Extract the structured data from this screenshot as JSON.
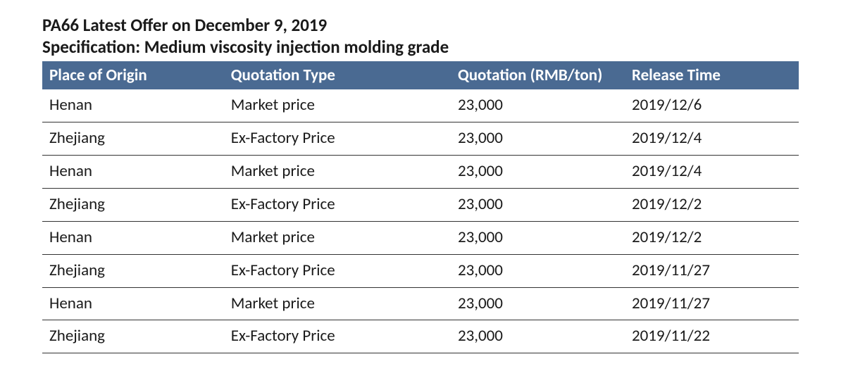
{
  "title_line1": "PA66 Latest Offer on December 9, 2019",
  "title_line2": "Specification: Medium viscosity injection molding grade",
  "table": {
    "header_bg": "#4a6a92",
    "header_color": "#ffffff",
    "row_border_color": "#333333",
    "font_family": "Calibri, Arial, sans-serif",
    "title_fontsize": 25,
    "header_fontsize": 23,
    "cell_fontsize": 23,
    "columns": [
      {
        "label": "Place of Origin",
        "width_pct": 24
      },
      {
        "label": "Quotation Type",
        "width_pct": 30
      },
      {
        "label": "Quotation (RMB/ton)",
        "width_pct": 23
      },
      {
        "label": "Release Time",
        "width_pct": 23
      }
    ],
    "rows": [
      {
        "place": "Henan",
        "qtype": "Market price",
        "quote": "23,000",
        "release": "2019/12/6"
      },
      {
        "place": "Zhejiang",
        "qtype": "Ex-Factory Price",
        "quote": "23,000",
        "release": "2019/12/4"
      },
      {
        "place": "Henan",
        "qtype": "Market price",
        "quote": "23,000",
        "release": "2019/12/4"
      },
      {
        "place": "Zhejiang",
        "qtype": "Ex-Factory Price",
        "quote": "23,000",
        "release": "2019/12/2"
      },
      {
        "place": "Henan",
        "qtype": "Market price",
        "quote": "23,000",
        "release": "2019/12/2"
      },
      {
        "place": "Zhejiang",
        "qtype": "Ex-Factory Price",
        "quote": "23,000",
        "release": "2019/11/27"
      },
      {
        "place": "Henan",
        "qtype": "Market price",
        "quote": "23,000",
        "release": "2019/11/27"
      },
      {
        "place": "Zhejiang",
        "qtype": "Ex-Factory Price",
        "quote": "23,000",
        "release": "2019/11/22"
      }
    ]
  }
}
